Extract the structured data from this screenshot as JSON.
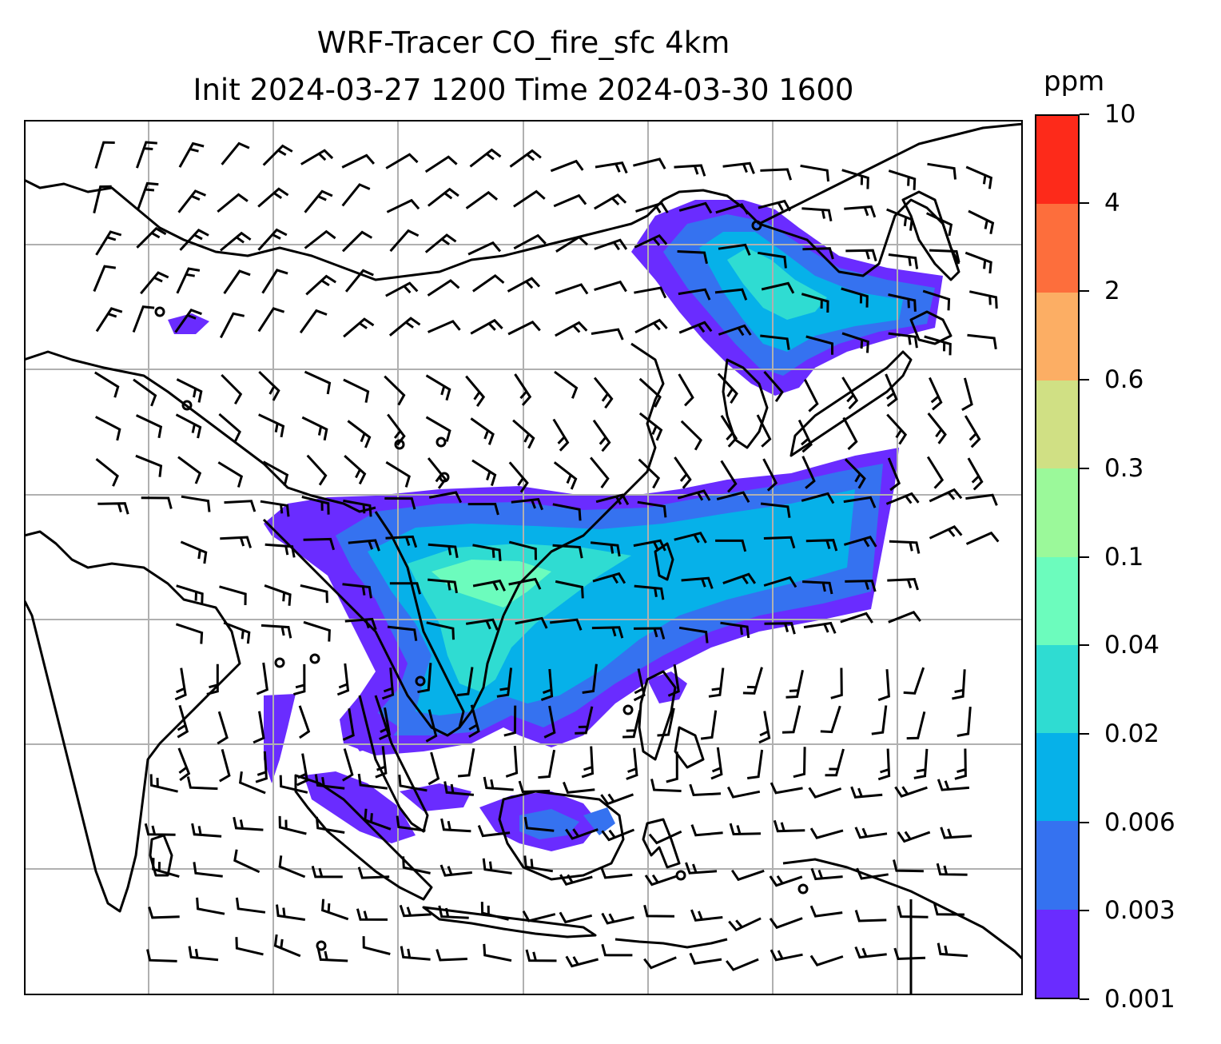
{
  "title": {
    "line1": "WRF-Tracer CO_fire_sfc 4km",
    "line2": "Init 2024-03-27 1200 Time 2024-03-30 1600"
  },
  "colorbar": {
    "unit": "ppm",
    "levels": [
      "0.001",
      "0.003",
      "0.006",
      "0.02",
      "0.04",
      "0.1",
      "0.3",
      "0.6",
      "2",
      "4",
      "10"
    ],
    "colors": [
      "#6a2cff",
      "#3572f0",
      "#06b1e9",
      "#2fdcd2",
      "#6cfcbd",
      "#9bf99a",
      "#d0e084",
      "#fcae64",
      "#fd6e3c",
      "#fd2a1a"
    ]
  },
  "map": {
    "plume_colors": {
      "outer": "#6a2cff",
      "mid": "#3572f0",
      "inner": "#06b1e9",
      "core": "#2fdcd2",
      "peak": "#6cfcbd"
    },
    "gridline_color": "#b0b0b0",
    "coastline_color": "#000000"
  }
}
